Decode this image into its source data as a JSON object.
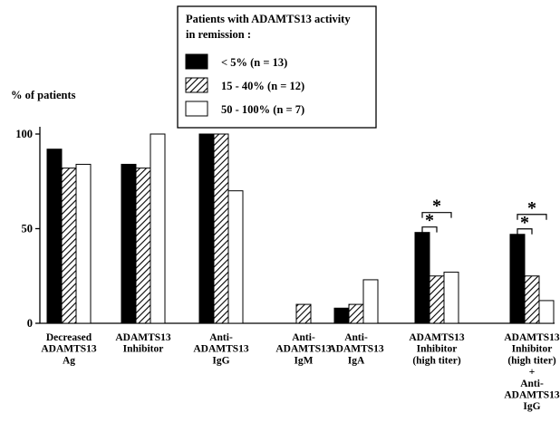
{
  "chart_data": {
    "type": "bar",
    "ylabel": "% of patients",
    "xlabel": "",
    "title": "",
    "ylim": [
      0,
      100
    ],
    "yticks": [
      0,
      50,
      100
    ],
    "legend": {
      "title_lines": [
        "Patients with ADAMTS13 activity",
        "in remission :"
      ],
      "placement": "top-center"
    },
    "categories": [
      [
        "Decreased",
        "ADAMTS13",
        "Ag"
      ],
      [
        "ADAMTS13",
        "Inhibitor"
      ],
      [
        "Anti-",
        "ADAMTS13",
        "IgG"
      ],
      [
        "Anti-",
        "ADAMTS13",
        "IgM"
      ],
      [
        "Anti-",
        "ADAMTS13",
        "IgA"
      ],
      [
        "ADAMTS13",
        "Inhibitor",
        "(high titer)"
      ],
      [
        "ADAMTS13",
        "Inhibitor",
        "(high titer)",
        "+",
        "Anti-",
        "ADAMTS13",
        "IgG"
      ]
    ],
    "series": [
      {
        "name": "< 5% (n = 13)",
        "fill": "solid-black",
        "values": [
          92,
          84,
          100,
          0,
          8,
          48,
          47
        ]
      },
      {
        "name": "15 - 40% (n = 12)",
        "fill": "hatched",
        "values": [
          82,
          82,
          100,
          10,
          10,
          25,
          25
        ]
      },
      {
        "name": "50 - 100% (n = 7)",
        "fill": "white",
        "values": [
          84,
          100,
          70,
          0,
          23,
          27,
          12
        ]
      }
    ],
    "significance": [
      {
        "category_index": 5,
        "label": "*",
        "compare": "< 5% (n = 13) vs 50 - 100% (n = 7)"
      },
      {
        "category_index": 5,
        "label": "*",
        "compare": "< 5% (n = 13) vs 15 - 40% (n = 12)"
      },
      {
        "category_index": 6,
        "label": "*",
        "compare": "< 5% (n = 13) vs 50 - 100% (n = 7)"
      },
      {
        "category_index": 6,
        "label": "*",
        "compare": "< 5% (n = 13) vs 15 - 40% (n = 12)"
      }
    ],
    "colors": {
      "ink": "#000000",
      "background": "#ffffff"
    }
  }
}
